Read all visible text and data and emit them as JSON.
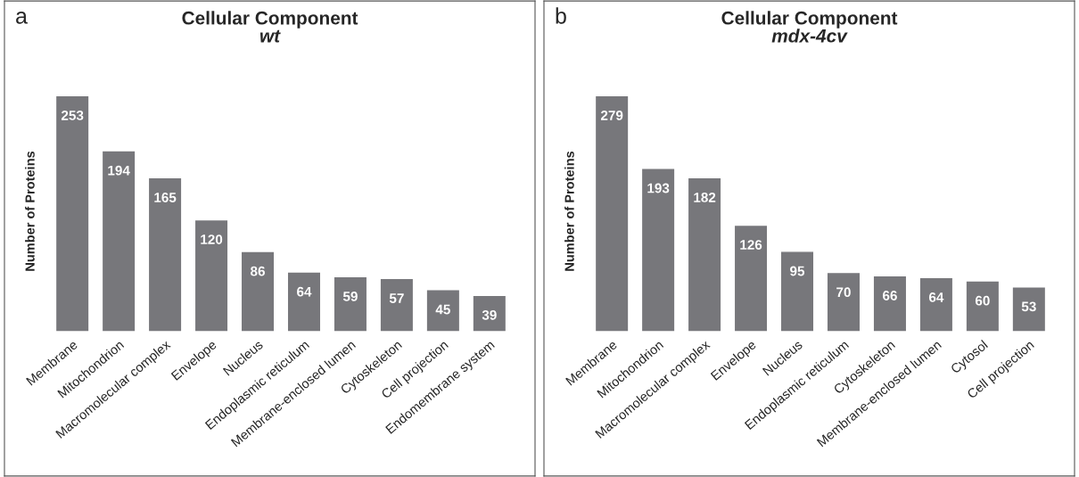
{
  "chart_data": [
    {
      "type": "bar",
      "title": "Cellular Component",
      "subtitle": "wt",
      "ylabel": "Number of Proteins",
      "annotations": [
        "a"
      ],
      "categories": [
        "Membrane",
        "Mitochondrion",
        "Macromolecular complex",
        "Envelope",
        "Nucleus",
        "Endoplasmic reticulum",
        "Membrane-enclosed lumen",
        "Cytoskeleton",
        "Cell projection",
        "Endomembrane system"
      ],
      "values": [
        253,
        194,
        165,
        120,
        86,
        64,
        59,
        57,
        45,
        39
      ],
      "color": "#77777b",
      "data_labels": true
    },
    {
      "type": "bar",
      "title": "Cellular Component",
      "subtitle": "mdx-4cv",
      "ylabel": "Number of Proteins",
      "annotations": [
        "b"
      ],
      "categories": [
        "Membrane",
        "Mitochondrion",
        "Macromolecular complex",
        "Envelope",
        "Nucleus",
        "Endoplasmic reticulum",
        "Cytoskeleton",
        "Membrane-enclosed lumen",
        "Cytosol",
        "Cell projection"
      ],
      "values": [
        279,
        193,
        182,
        126,
        95,
        70,
        66,
        64,
        60,
        53
      ],
      "color": "#77777b",
      "data_labels": true
    }
  ]
}
